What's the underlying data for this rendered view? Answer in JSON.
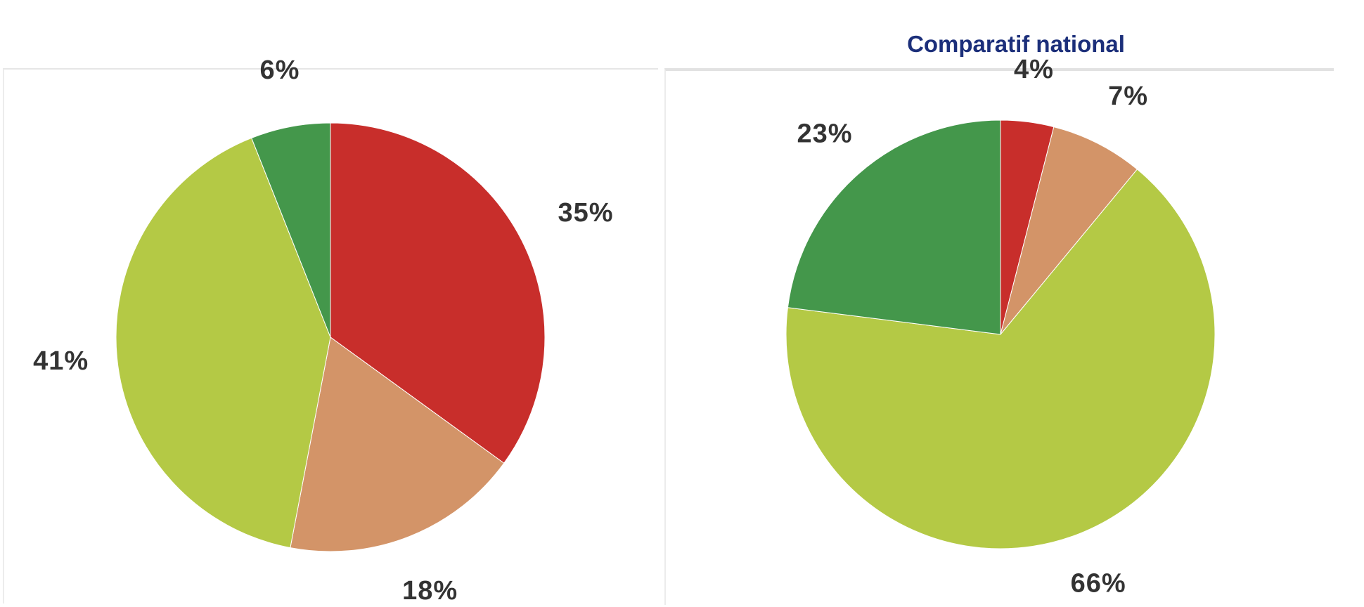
{
  "chart_data": [
    {
      "type": "pie",
      "title": "",
      "slices": [
        {
          "label": "35%",
          "value": 35,
          "color": "#c82e2b"
        },
        {
          "label": "18%",
          "value": 18,
          "color": "#d39468"
        },
        {
          "label": "41%",
          "value": 41,
          "color": "#b4c945"
        },
        {
          "label": "6%",
          "value": 6,
          "color": "#44974b"
        }
      ],
      "start_angle_deg": 0,
      "direction": "clockwise"
    },
    {
      "type": "pie",
      "title": "Comparatif national",
      "slices": [
        {
          "label": "4%",
          "value": 4,
          "color": "#c82e2b"
        },
        {
          "label": "7%",
          "value": 7,
          "color": "#d39468"
        },
        {
          "label": "66%",
          "value": 66,
          "color": "#b4c945"
        },
        {
          "label": "23%",
          "value": 23,
          "color": "#44974b"
        }
      ],
      "start_angle_deg": 0,
      "direction": "clockwise"
    }
  ]
}
